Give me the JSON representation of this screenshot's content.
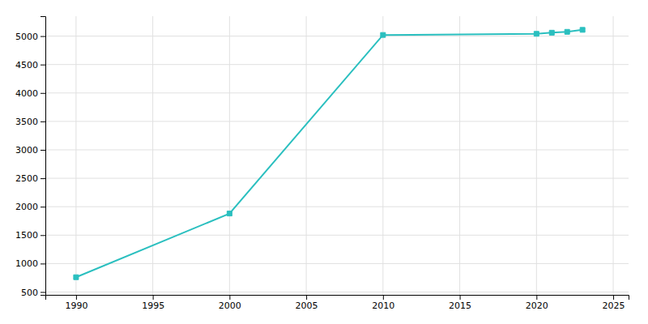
{
  "chart_data": {
    "type": "line",
    "x": [
      1990,
      2000,
      2010,
      2020,
      2021,
      2022,
      2023
    ],
    "values": [
      760,
      1880,
      5020,
      5040,
      5060,
      5075,
      5110
    ],
    "color": "#2abfbf",
    "marker": "square",
    "xlim": [
      1988,
      2026
    ],
    "ylim": [
      450,
      5350
    ],
    "xticks": [
      1990,
      1995,
      2000,
      2005,
      2010,
      2015,
      2020,
      2025
    ],
    "yticks": [
      500,
      1000,
      1500,
      2000,
      2500,
      3000,
      3500,
      4000,
      4500,
      5000
    ],
    "grid": true
  }
}
